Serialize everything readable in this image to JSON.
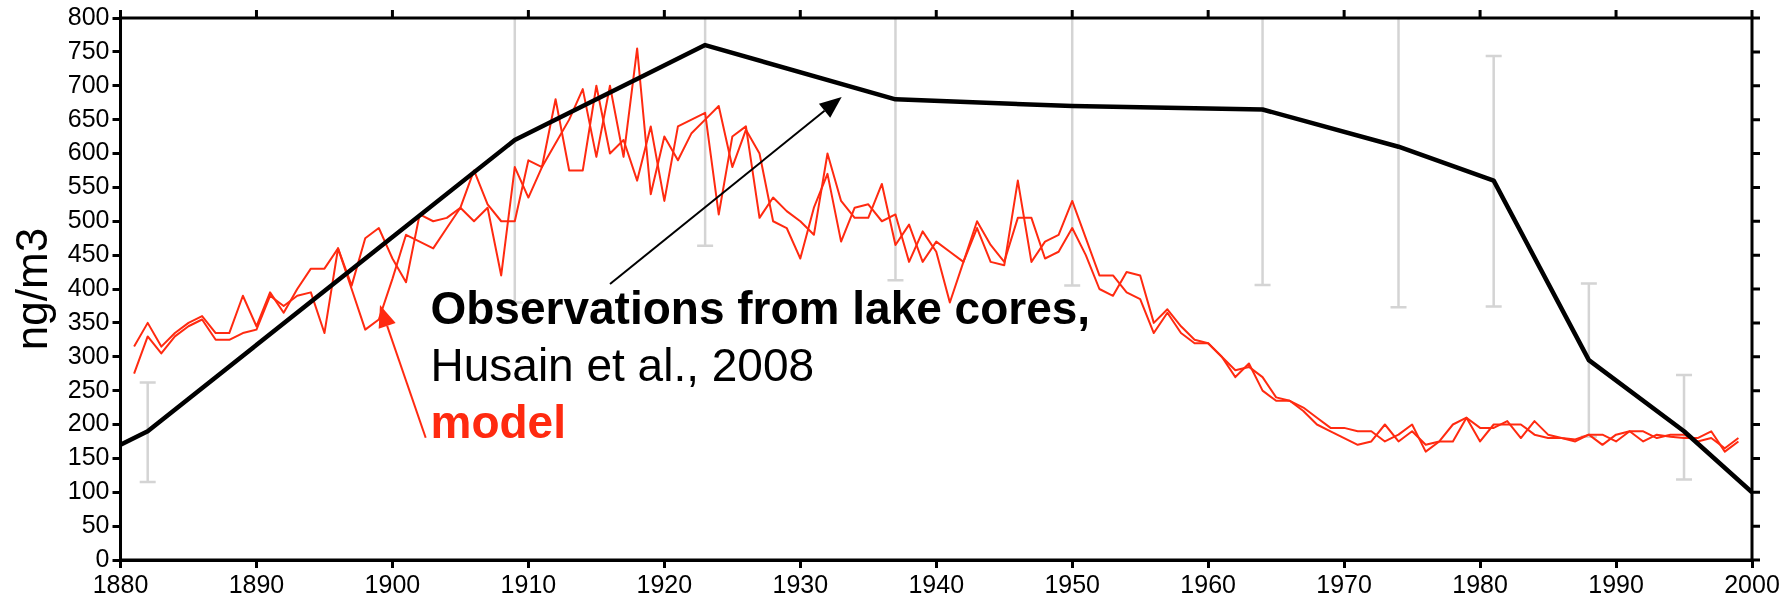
{
  "chart_data": {
    "type": "line",
    "ylabel": "ng/m3",
    "xlim": [
      1880,
      2000
    ],
    "ylim": [
      0,
      800
    ],
    "xticks": [
      1880,
      1890,
      1900,
      1910,
      1920,
      1930,
      1940,
      1950,
      1960,
      1970,
      1980,
      1990,
      2000
    ],
    "yticks": [
      0,
      50,
      100,
      150,
      200,
      250,
      300,
      350,
      400,
      450,
      500,
      550,
      600,
      650,
      700,
      750,
      800
    ],
    "grid": false,
    "legend": false,
    "marker": "none",
    "line_style": "solid",
    "annotations": [
      "Observations from lake cores,",
      "Husain et al., 2008",
      "model"
    ],
    "series": [
      {
        "color": "#ff2a10",
        "x": [
          1881,
          1882,
          1883,
          1884,
          1885,
          1886,
          1887,
          1888,
          1889,
          1890,
          1891,
          1892,
          1893,
          1894,
          1895,
          1896,
          1897,
          1898,
          1899,
          1900,
          1901,
          1902,
          1903,
          1904,
          1905,
          1906,
          1907,
          1908,
          1909,
          1910,
          1911,
          1912,
          1913,
          1914,
          1915,
          1916,
          1917,
          1918,
          1919,
          1920,
          1921,
          1922,
          1923,
          1924,
          1925,
          1926,
          1927,
          1928,
          1929,
          1930,
          1931,
          1932,
          1933,
          1934,
          1935,
          1936,
          1937,
          1938,
          1939,
          1940,
          1941,
          1942,
          1943,
          1944,
          1945,
          1946,
          1947,
          1948,
          1949,
          1950,
          1951,
          1952,
          1953,
          1954,
          1955,
          1956,
          1957,
          1958,
          1959,
          1960,
          1961,
          1962,
          1963,
          1964,
          1965,
          1966,
          1967,
          1968,
          1969,
          1970,
          1971,
          1972,
          1973,
          1974,
          1975,
          1976,
          1977,
          1978,
          1979,
          1980,
          1981,
          1982,
          1983,
          1984,
          1985,
          1986,
          1987,
          1988,
          1989,
          1990,
          1991,
          1992,
          1993,
          1994,
          1995,
          1996,
          1997,
          1998,
          1999
        ],
        "values": [
          315,
          350,
          315,
          335,
          350,
          360,
          335,
          335,
          390,
          345,
          395,
          365,
          400,
          430,
          430,
          460,
          405,
          475,
          490,
          445,
          410,
          510,
          500,
          505,
          520,
          575,
          525,
          500,
          500,
          590,
          580,
          680,
          575,
          575,
          700,
          600,
          620,
          560,
          640,
          530,
          640,
          650,
          660,
          510,
          625,
          640,
          505,
          535,
          515,
          500,
          480,
          600,
          530,
          505,
          505,
          555,
          465,
          495,
          440,
          470,
          455,
          440,
          500,
          465,
          440,
          505,
          505,
          445,
          455,
          490,
          450,
          400,
          390,
          425,
          420,
          350,
          370,
          345,
          325,
          320,
          300,
          280,
          285,
          270,
          240,
          235,
          225,
          210,
          195,
          195,
          190,
          190,
          175,
          185,
          200,
          160,
          175,
          175,
          210,
          195,
          195,
          205,
          180,
          205,
          185,
          180,
          178,
          185,
          170,
          185,
          190,
          175,
          185,
          182,
          180,
          180,
          190,
          160,
          175
        ]
      },
      {
        "color": "#ff2a10",
        "x": [
          1881,
          1882,
          1883,
          1884,
          1885,
          1886,
          1887,
          1888,
          1889,
          1890,
          1891,
          1892,
          1893,
          1894,
          1895,
          1896,
          1897,
          1898,
          1899,
          1900,
          1901,
          1902,
          1903,
          1904,
          1905,
          1906,
          1907,
          1908,
          1909,
          1910,
          1911,
          1912,
          1913,
          1914,
          1915,
          1916,
          1917,
          1918,
          1919,
          1920,
          1921,
          1922,
          1923,
          1924,
          1925,
          1926,
          1927,
          1928,
          1929,
          1930,
          1931,
          1932,
          1933,
          1934,
          1935,
          1936,
          1937,
          1938,
          1939,
          1940,
          1941,
          1942,
          1943,
          1944,
          1945,
          1946,
          1947,
          1948,
          1949,
          1950,
          1951,
          1952,
          1953,
          1954,
          1955,
          1956,
          1957,
          1958,
          1959,
          1960,
          1961,
          1962,
          1963,
          1964,
          1965,
          1966,
          1967,
          1968,
          1969,
          1970,
          1971,
          1972,
          1973,
          1974,
          1975,
          1976,
          1977,
          1978,
          1979,
          1980,
          1981,
          1982,
          1983,
          1984,
          1985,
          1986,
          1987,
          1988,
          1989,
          1990,
          1991,
          1992,
          1993,
          1994,
          1995,
          1996,
          1997,
          1998,
          1999
        ],
        "values": [
          275,
          330,
          305,
          330,
          345,
          355,
          325,
          325,
          335,
          340,
          390,
          375,
          390,
          395,
          335,
          460,
          400,
          340,
          355,
          415,
          480,
          470,
          460,
          490,
          520,
          500,
          520,
          420,
          580,
          535,
          580,
          615,
          650,
          695,
          595,
          700,
          595,
          755,
          540,
          625,
          590,
          630,
          650,
          670,
          580,
          635,
          600,
          500,
          490,
          445,
          520,
          570,
          470,
          520,
          525,
          500,
          510,
          440,
          485,
          455,
          380,
          440,
          490,
          440,
          435,
          560,
          440,
          470,
          480,
          530,
          475,
          420,
          420,
          395,
          385,
          335,
          365,
          335,
          320,
          320,
          300,
          270,
          290,
          250,
          235,
          235,
          220,
          200,
          190,
          180,
          170,
          175,
          200,
          175,
          190,
          170,
          175,
          200,
          210,
          175,
          200,
          200,
          200,
          185,
          180,
          180,
          175,
          185,
          185,
          175,
          190,
          190,
          180,
          185,
          185,
          175,
          180,
          165,
          180
        ]
      },
      {
        "color": "#000000",
        "x": [
          1880,
          1882,
          1909,
          1923,
          1937,
          1950,
          1964,
          1974,
          1981,
          1988,
          1995,
          2000
        ],
        "values": [
          170,
          190,
          620,
          760,
          680,
          670,
          665,
          610,
          560,
          295,
          190,
          100
        ],
        "errors": [
          null,
          [
            115,
            262
          ],
          [
            380,
            800
          ],
          [
            464,
            800
          ],
          [
            413,
            800
          ],
          [
            405,
            800
          ],
          [
            406,
            800
          ],
          [
            373,
            800
          ],
          [
            374,
            744
          ],
          [
            182,
            408
          ],
          [
            119,
            273
          ],
          null
        ]
      }
    ]
  }
}
